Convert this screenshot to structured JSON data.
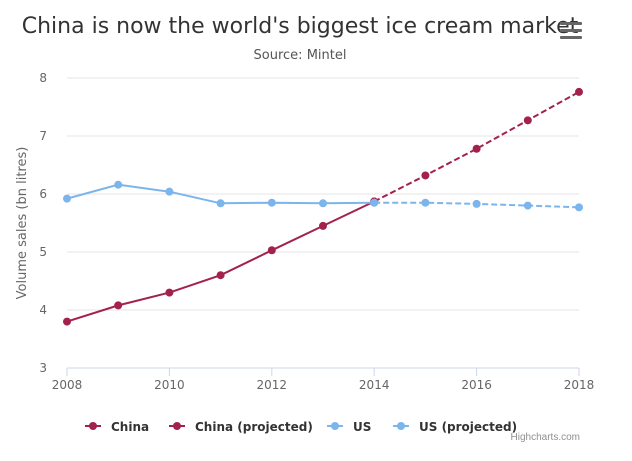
{
  "header": {
    "menu_icon": "hamburger-menu-icon"
  },
  "credits": "Highcharts.com",
  "chart_data": {
    "type": "line",
    "title": "China is now the world's biggest ice cream market",
    "subtitle": "Source: Mintel",
    "ylabel": "Volume sales (bn litres)",
    "xlabel": "",
    "xlim": [
      2008,
      2018
    ],
    "ylim": [
      3,
      8
    ],
    "x_ticks": [
      2008,
      2010,
      2012,
      2014,
      2016,
      2018
    ],
    "y_ticks": [
      3,
      4,
      5,
      6,
      7,
      8
    ],
    "grid": true,
    "legend_position": "bottom",
    "series": [
      {
        "name": "China",
        "color": "#A3214F",
        "dashed": false,
        "x": [
          2008,
          2009,
          2010,
          2011,
          2012,
          2013,
          2014
        ],
        "values": [
          3.8,
          4.08,
          4.3,
          4.6,
          5.03,
          5.45,
          5.87
        ]
      },
      {
        "name": "China (projected)",
        "color": "#A3214F",
        "dashed": true,
        "x": [
          2014,
          2015,
          2016,
          2017,
          2018
        ],
        "values": [
          5.87,
          6.32,
          6.78,
          7.27,
          7.76
        ]
      },
      {
        "name": "US",
        "color": "#7CB5EC",
        "dashed": false,
        "x": [
          2008,
          2009,
          2010,
          2011,
          2012,
          2013,
          2014
        ],
        "values": [
          5.92,
          6.16,
          6.04,
          5.84,
          5.85,
          5.84,
          5.85
        ]
      },
      {
        "name": "US (projected)",
        "color": "#7CB5EC",
        "dashed": true,
        "x": [
          2014,
          2015,
          2016,
          2017,
          2018
        ],
        "values": [
          5.85,
          5.85,
          5.83,
          5.8,
          5.77
        ]
      }
    ]
  }
}
